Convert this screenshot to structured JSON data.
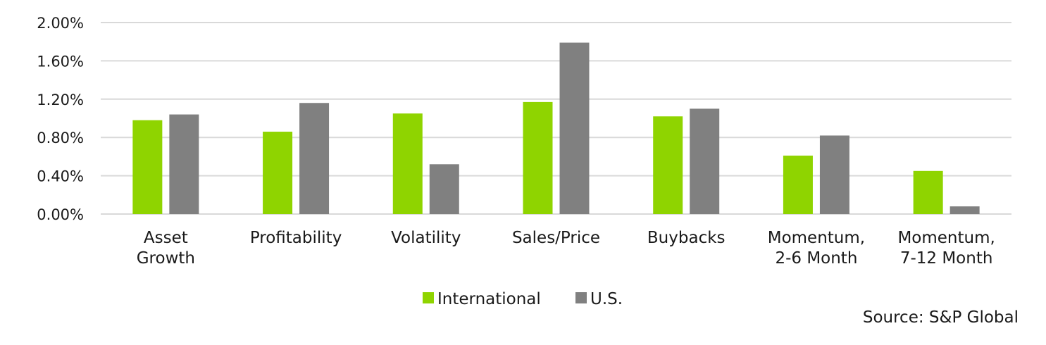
{
  "chart_data": {
    "type": "bar",
    "categories": [
      [
        "Asset",
        "Growth"
      ],
      [
        "Profitability"
      ],
      [
        "Volatility"
      ],
      [
        "Sales/Price"
      ],
      [
        "Buybacks"
      ],
      [
        "Momentum,",
        "2-6 Month"
      ],
      [
        "Momentum,",
        "7-12 Month"
      ]
    ],
    "series": [
      {
        "name": "International",
        "color": "#8fd400",
        "values": [
          0.98,
          0.86,
          1.05,
          1.17,
          1.02,
          0.61,
          0.45
        ]
      },
      {
        "name": "U.S.",
        "color": "#808080",
        "values": [
          1.04,
          1.16,
          0.52,
          1.79,
          1.1,
          0.82,
          0.08
        ]
      }
    ],
    "y_ticks": [
      "0.00%",
      "0.40%",
      "0.80%",
      "1.20%",
      "1.60%",
      "2.00%"
    ],
    "ylim": [
      0,
      2.0
    ],
    "grid": true,
    "legend_position": "bottom-center",
    "source": "Source: S&P Global"
  }
}
